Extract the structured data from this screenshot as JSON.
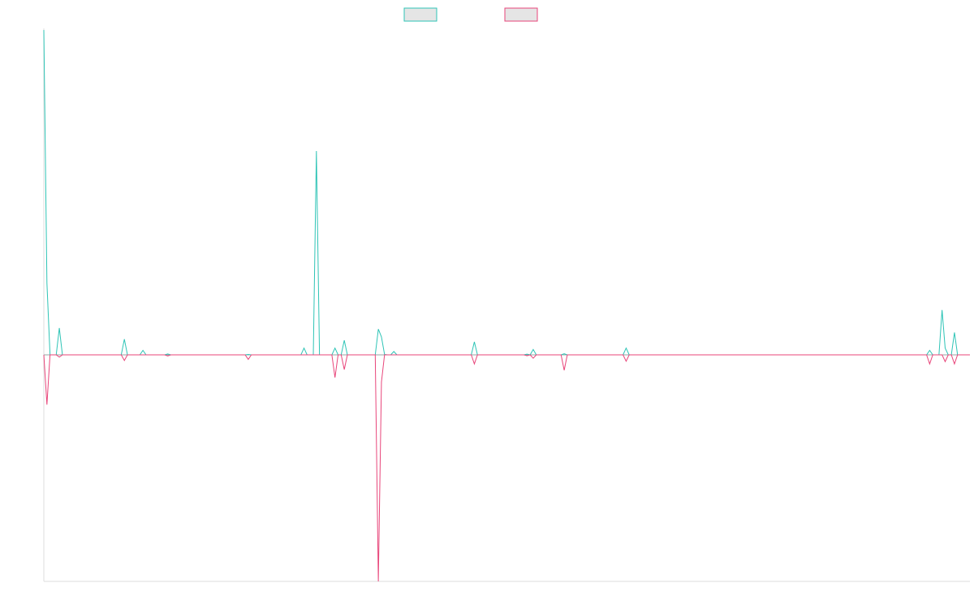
{
  "chart_data": {
    "type": "line",
    "x_count": 300,
    "ylim": [
      -1.0,
      1.45
    ],
    "legend": {
      "placement": "top-center",
      "entries": [
        {
          "color": "#2ec4b6"
        },
        {
          "color": "#e8457a"
        }
      ]
    },
    "colors": {
      "teal": "#2ec4b6",
      "pink": "#e8457a",
      "axis": "#dddddd",
      "legend_fill": "#e5e5e5"
    },
    "series": [
      {
        "color": "#2ec4b6",
        "points": [
          [
            0,
            1.45
          ],
          [
            1,
            0.32
          ],
          [
            2,
            0
          ],
          [
            3,
            0
          ],
          [
            4,
            0
          ],
          [
            5,
            0.12
          ],
          [
            6,
            0
          ],
          [
            25,
            0
          ],
          [
            26,
            0.07
          ],
          [
            27,
            0
          ],
          [
            31,
            0
          ],
          [
            32,
            0.02
          ],
          [
            33,
            0
          ],
          [
            39,
            0
          ],
          [
            40,
            0.004
          ],
          [
            41,
            0
          ],
          [
            65,
            0
          ],
          [
            66,
            0.002
          ],
          [
            67,
            0
          ],
          [
            83,
            0
          ],
          [
            84,
            0.03
          ],
          [
            85,
            0
          ],
          [
            87,
            0
          ],
          [
            88,
            0.91
          ],
          [
            89,
            0
          ],
          [
            93,
            0
          ],
          [
            94,
            0.03
          ],
          [
            95,
            0
          ],
          [
            96,
            0
          ],
          [
            97,
            0.065
          ],
          [
            98,
            0
          ],
          [
            107,
            0
          ],
          [
            108,
            0.115
          ],
          [
            109,
            0.08
          ],
          [
            110,
            0.002
          ],
          [
            111,
            0
          ],
          [
            112,
            0
          ],
          [
            113,
            0.015
          ],
          [
            114,
            0
          ],
          [
            138,
            0
          ],
          [
            139,
            0.058
          ],
          [
            140,
            0
          ],
          [
            155,
            0
          ],
          [
            156,
            0.003
          ],
          [
            157,
            0
          ],
          [
            157,
            0
          ],
          [
            158,
            0.024
          ],
          [
            159,
            0
          ],
          [
            167,
            0
          ],
          [
            168,
            0.005
          ],
          [
            169,
            0
          ],
          [
            187,
            0
          ],
          [
            188,
            0.03
          ],
          [
            189,
            0
          ],
          [
            285,
            0
          ],
          [
            286,
            0.02
          ],
          [
            287,
            0
          ],
          [
            289,
            0
          ],
          [
            290,
            0.2
          ],
          [
            291,
            0.03
          ],
          [
            292,
            0
          ],
          [
            293,
            0
          ],
          [
            294,
            0.1
          ],
          [
            295,
            0
          ],
          [
            299,
            0
          ]
        ]
      },
      {
        "color": "#e8457a",
        "points": [
          [
            0,
            0
          ],
          [
            1,
            -0.22
          ],
          [
            2,
            0
          ],
          [
            4,
            0
          ],
          [
            5,
            -0.01
          ],
          [
            6,
            0
          ],
          [
            25,
            0
          ],
          [
            26,
            -0.025
          ],
          [
            27,
            0
          ],
          [
            39,
            0
          ],
          [
            40,
            -0.005
          ],
          [
            41,
            0
          ],
          [
            65,
            0
          ],
          [
            66,
            -0.02
          ],
          [
            67,
            0
          ],
          [
            93,
            0
          ],
          [
            94,
            -0.1
          ],
          [
            95,
            0
          ],
          [
            96,
            0
          ],
          [
            97,
            -0.065
          ],
          [
            98,
            0
          ],
          [
            107,
            0
          ],
          [
            108,
            -1.0
          ],
          [
            109,
            -0.12
          ],
          [
            110,
            0
          ],
          [
            138,
            0
          ],
          [
            139,
            -0.04
          ],
          [
            140,
            0
          ],
          [
            155,
            0
          ],
          [
            156,
            -0.004
          ],
          [
            157,
            0
          ],
          [
            157,
            0
          ],
          [
            158,
            -0.015
          ],
          [
            159,
            0
          ],
          [
            167,
            0
          ],
          [
            168,
            -0.068
          ],
          [
            169,
            0
          ],
          [
            187,
            0
          ],
          [
            188,
            -0.028
          ],
          [
            189,
            0
          ],
          [
            285,
            0
          ],
          [
            286,
            -0.04
          ],
          [
            287,
            0
          ],
          [
            290,
            0
          ],
          [
            291,
            -0.03
          ],
          [
            292,
            0
          ],
          [
            293,
            0
          ],
          [
            294,
            -0.04
          ],
          [
            295,
            0
          ],
          [
            299,
            0
          ]
        ]
      }
    ]
  }
}
